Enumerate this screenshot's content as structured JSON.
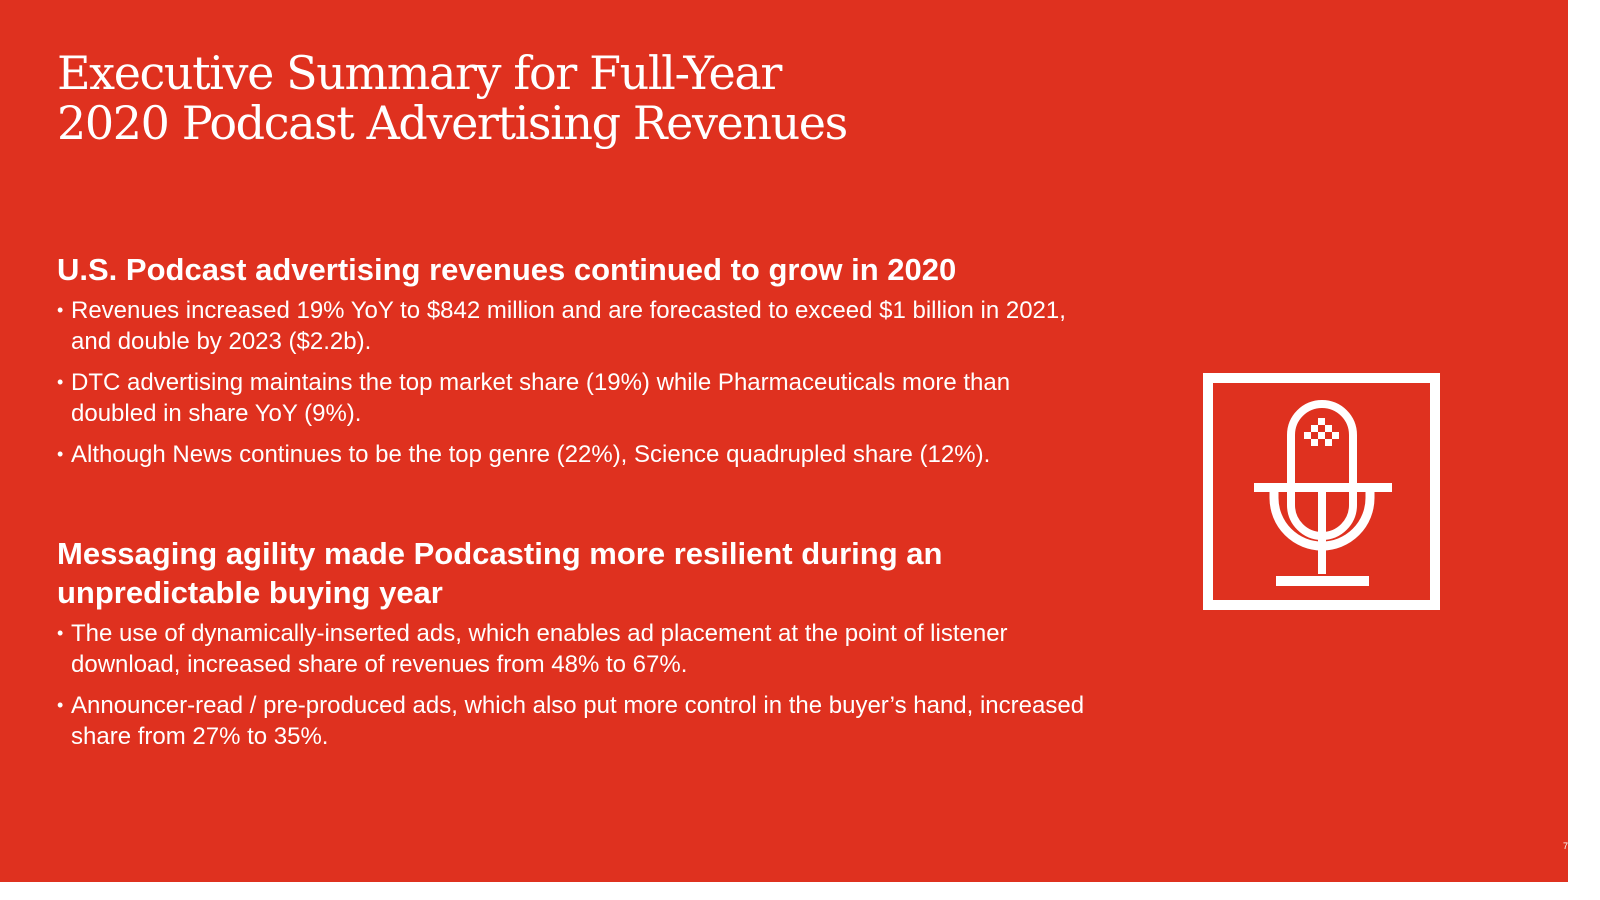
{
  "slide": {
    "background_color": "#df311f",
    "text_color": "#ffffff",
    "title": {
      "line_1": "Executive Summary for Full-Year",
      "line_2": "2020 Podcast Advertising Revenues"
    },
    "sections": [
      {
        "heading": "U.S. Podcast advertising revenues continued to grow in 2020",
        "bullets": [
          "Revenues increased 19% YoY to $842 million and are forecasted to exceed $1 billion in 2021, and double by 2023 ($2.2b).",
          "DTC advertising maintains the top market share (19%) while Pharmaceuticals more than doubled in share YoY (9%).",
          "Although News continues to be the top genre (22%), Science quadrupled share (12%)."
        ]
      },
      {
        "heading": "Messaging agility made Podcasting more resilient during an unpredictable buying year",
        "bullets": [
          "The use of dynamically-inserted ads, which enables ad placement at the point of listener download, increased share of revenues from 48% to 67%.",
          "Announcer-read / pre-produced ads, which also put more control in the buyer’s hand, increased share from 27% to 35%."
        ]
      }
    ],
    "bullet_symbol": "•",
    "icon": "microphone-icon",
    "page_number": "7"
  }
}
